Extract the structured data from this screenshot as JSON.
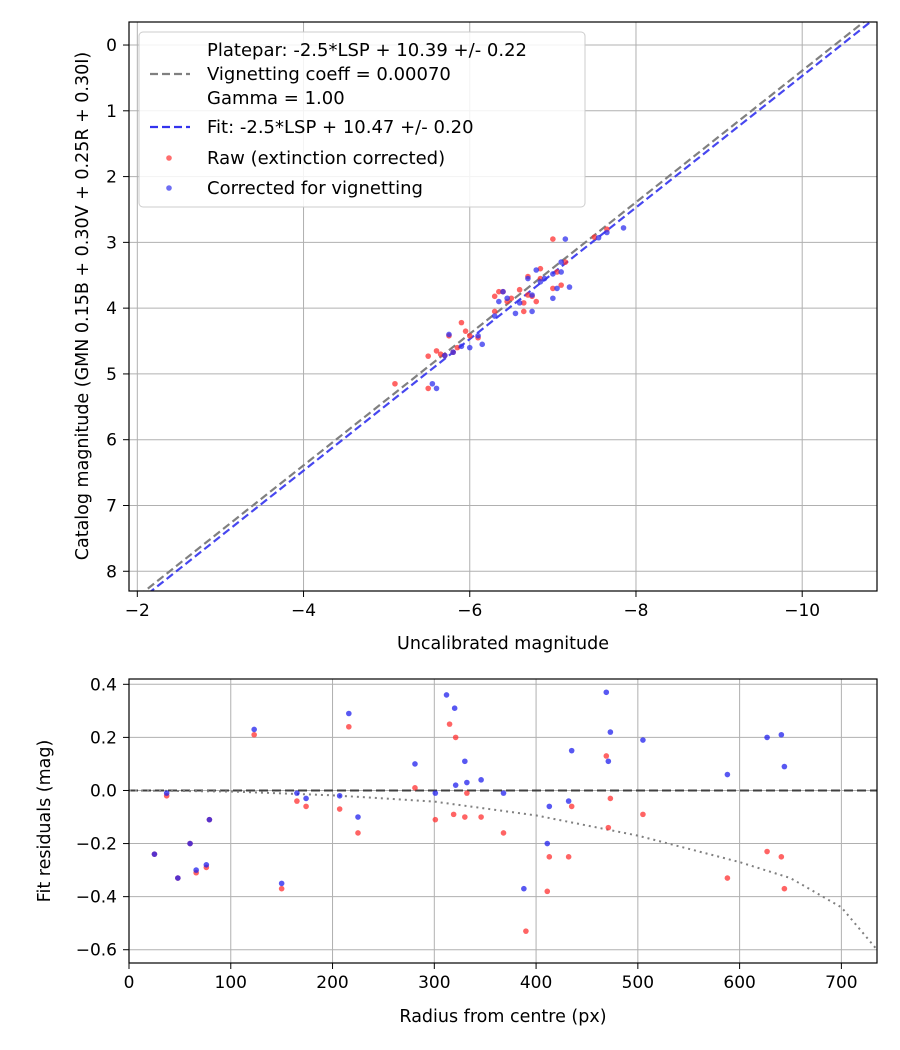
{
  "chart_data": [
    {
      "type": "scatter",
      "xlabel": "Uncalibrated magnitude",
      "ylabel": "Catalog magnitude (GMN 0.15B + 0.30V + 0.25R + 0.30I)",
      "xlim": [
        -1.9,
        -10.9
      ],
      "ylim": [
        8.3,
        -0.35
      ],
      "x_ticks": [
        -2,
        -4,
        -6,
        -8,
        -10
      ],
      "x_tick_labels": [
        "−2",
        "−4",
        "−6",
        "−8",
        "−10"
      ],
      "y_ticks": [
        0,
        1,
        2,
        3,
        4,
        5,
        6,
        7,
        8
      ],
      "y_tick_labels": [
        "0",
        "1",
        "2",
        "3",
        "4",
        "5",
        "6",
        "7",
        "8"
      ],
      "grid": true,
      "legend_position": "top-left",
      "lines": [
        {
          "name": "Platepar",
          "legend": [
            "Platepar: -2.5*LSP + 10.39 +/- 0.22",
            "Vignetting coeff = 0.00070",
            "Gamma = 1.00"
          ],
          "slope": 1,
          "intercept": 10.39,
          "color": "#808080",
          "style": "dashed"
        },
        {
          "name": "Fit",
          "legend": [
            "Fit: -2.5*LSP + 10.47 +/- 0.20"
          ],
          "slope": 1,
          "intercept": 10.47,
          "color": "#3333ee",
          "style": "dashed"
        }
      ],
      "series": [
        {
          "name": "Raw (extinction corrected)",
          "color": "#ff3030",
          "points": [
            [
              -5.1,
              5.15
            ],
            [
              -5.5,
              4.73
            ],
            [
              -5.6,
              4.65
            ],
            [
              -5.65,
              4.7
            ],
            [
              -5.7,
              4.72
            ],
            [
              -5.75,
              4.42
            ],
            [
              -5.8,
              4.67
            ],
            [
              -5.85,
              4.6
            ],
            [
              -5.9,
              4.22
            ],
            [
              -5.95,
              4.35
            ],
            [
              -6.0,
              4.42
            ],
            [
              -6.1,
              4.45
            ],
            [
              -6.3,
              4.05
            ],
            [
              -6.3,
              3.82
            ],
            [
              -6.35,
              3.75
            ],
            [
              -6.4,
              3.75
            ],
            [
              -6.45,
              3.9
            ],
            [
              -6.5,
              3.85
            ],
            [
              -6.6,
              3.72
            ],
            [
              -6.65,
              3.92
            ],
            [
              -6.65,
              4.05
            ],
            [
              -6.7,
              3.8
            ],
            [
              -6.7,
              3.52
            ],
            [
              -6.75,
              3.82
            ],
            [
              -6.8,
              3.9
            ],
            [
              -6.85,
              3.4
            ],
            [
              -6.85,
              3.55
            ],
            [
              -7.0,
              2.95
            ],
            [
              -7.0,
              3.7
            ],
            [
              -7.05,
              3.45
            ],
            [
              -7.1,
              3.65
            ],
            [
              -7.15,
              3.3
            ],
            [
              -7.5,
              2.92
            ],
            [
              -7.65,
              2.8
            ],
            [
              -5.5,
              5.22
            ]
          ]
        },
        {
          "name": "Corrected for vignetting",
          "color": "#3030ee",
          "points": [
            [
              -5.55,
              5.15
            ],
            [
              -5.6,
              5.22
            ],
            [
              -5.7,
              4.72
            ],
            [
              -5.75,
              4.4
            ],
            [
              -5.8,
              4.67
            ],
            [
              -5.9,
              4.58
            ],
            [
              -6.0,
              4.6
            ],
            [
              -6.1,
              4.42
            ],
            [
              -6.15,
              4.55
            ],
            [
              -6.3,
              4.12
            ],
            [
              -6.35,
              3.9
            ],
            [
              -6.4,
              3.75
            ],
            [
              -6.45,
              3.85
            ],
            [
              -6.55,
              4.08
            ],
            [
              -6.6,
              3.92
            ],
            [
              -6.7,
              3.55
            ],
            [
              -6.75,
              3.8
            ],
            [
              -6.75,
              4.05
            ],
            [
              -6.8,
              3.42
            ],
            [
              -6.85,
              3.6
            ],
            [
              -6.9,
              3.55
            ],
            [
              -7.0,
              3.85
            ],
            [
              -7.0,
              3.48
            ],
            [
              -7.05,
              3.7
            ],
            [
              -7.1,
              3.45
            ],
            [
              -7.1,
              3.3
            ],
            [
              -7.15,
              2.95
            ],
            [
              -7.2,
              3.68
            ],
            [
              -7.55,
              2.93
            ],
            [
              -7.65,
              2.85
            ],
            [
              -7.85,
              2.78
            ]
          ]
        }
      ]
    },
    {
      "type": "scatter",
      "xlabel": "Radius from centre (px)",
      "ylabel": "Fit residuals (mag)",
      "xlim": [
        0,
        735
      ],
      "ylim": [
        -0.65,
        0.42
      ],
      "x_ticks": [
        0,
        100,
        200,
        300,
        400,
        500,
        600,
        700
      ],
      "x_tick_labels": [
        "0",
        "100",
        "200",
        "300",
        "400",
        "500",
        "600",
        "700"
      ],
      "y_ticks": [
        0.4,
        0.2,
        0.0,
        -0.2,
        -0.4,
        -0.6
      ],
      "y_tick_labels": [
        "0.4",
        "0.2",
        "0.0",
        "−0.2",
        "−0.4",
        "−0.6"
      ],
      "grid": true,
      "zero_line": {
        "y": 0,
        "color": "#404040",
        "style": "dashed"
      },
      "vignetting_curve": {
        "coeff": 0.0007,
        "color": "#808080",
        "style": "dotted",
        "samples": [
          [
            0,
            0
          ],
          [
            100,
            -0.004
          ],
          [
            200,
            -0.018
          ],
          [
            300,
            -0.042
          ],
          [
            400,
            -0.094
          ],
          [
            500,
            -0.17
          ],
          [
            600,
            -0.27
          ],
          [
            650,
            -0.33
          ],
          [
            700,
            -0.44
          ],
          [
            735,
            -0.6
          ]
        ]
      },
      "series": [
        {
          "name": "Raw (extinction corrected)",
          "color": "#ff3030",
          "points": [
            [
              25,
              -0.24
            ],
            [
              37,
              -0.02
            ],
            [
              48,
              -0.33
            ],
            [
              60,
              -0.2
            ],
            [
              66,
              -0.31
            ],
            [
              76,
              -0.29
            ],
            [
              79,
              -0.11
            ],
            [
              123,
              0.21
            ],
            [
              150,
              -0.37
            ],
            [
              165,
              -0.04
            ],
            [
              174,
              -0.06
            ],
            [
              207,
              -0.07
            ],
            [
              216,
              0.24
            ],
            [
              225,
              -0.16
            ],
            [
              281,
              0.01
            ],
            [
              301,
              -0.11
            ],
            [
              315,
              0.25
            ],
            [
              319,
              -0.09
            ],
            [
              321,
              0.2
            ],
            [
              330,
              -0.1
            ],
            [
              332,
              -0.01
            ],
            [
              346,
              -0.1
            ],
            [
              368,
              -0.16
            ],
            [
              390,
              -0.53
            ],
            [
              411,
              -0.38
            ],
            [
              413,
              -0.25
            ],
            [
              432,
              -0.25
            ],
            [
              435,
              -0.06
            ],
            [
              469,
              0.13
            ],
            [
              471,
              -0.14
            ],
            [
              473,
              -0.03
            ],
            [
              505,
              -0.09
            ],
            [
              588,
              -0.33
            ],
            [
              627,
              -0.23
            ],
            [
              641,
              -0.25
            ],
            [
              644,
              -0.37
            ]
          ]
        },
        {
          "name": "Corrected for vignetting",
          "color": "#2020ee",
          "points": [
            [
              25,
              -0.24
            ],
            [
              37,
              -0.01
            ],
            [
              48,
              -0.33
            ],
            [
              60,
              -0.2
            ],
            [
              66,
              -0.3
            ],
            [
              76,
              -0.28
            ],
            [
              79,
              -0.11
            ],
            [
              123,
              0.23
            ],
            [
              150,
              -0.35
            ],
            [
              165,
              -0.01
            ],
            [
              174,
              -0.03
            ],
            [
              207,
              -0.02
            ],
            [
              216,
              0.29
            ],
            [
              225,
              -0.1
            ],
            [
              281,
              0.1
            ],
            [
              301,
              -0.01
            ],
            [
              312,
              0.36
            ],
            [
              320,
              0.31
            ],
            [
              321,
              0.02
            ],
            [
              330,
              0.11
            ],
            [
              332,
              0.03
            ],
            [
              346,
              0.04
            ],
            [
              368,
              -0.01
            ],
            [
              388,
              -0.37
            ],
            [
              411,
              -0.2
            ],
            [
              413,
              -0.06
            ],
            [
              432,
              -0.04
            ],
            [
              435,
              0.15
            ],
            [
              469,
              0.37
            ],
            [
              471,
              0.11
            ],
            [
              473,
              0.22
            ],
            [
              505,
              0.19
            ],
            [
              588,
              0.06
            ],
            [
              627,
              0.2
            ],
            [
              641,
              0.21
            ],
            [
              644,
              0.09
            ]
          ]
        }
      ]
    }
  ]
}
